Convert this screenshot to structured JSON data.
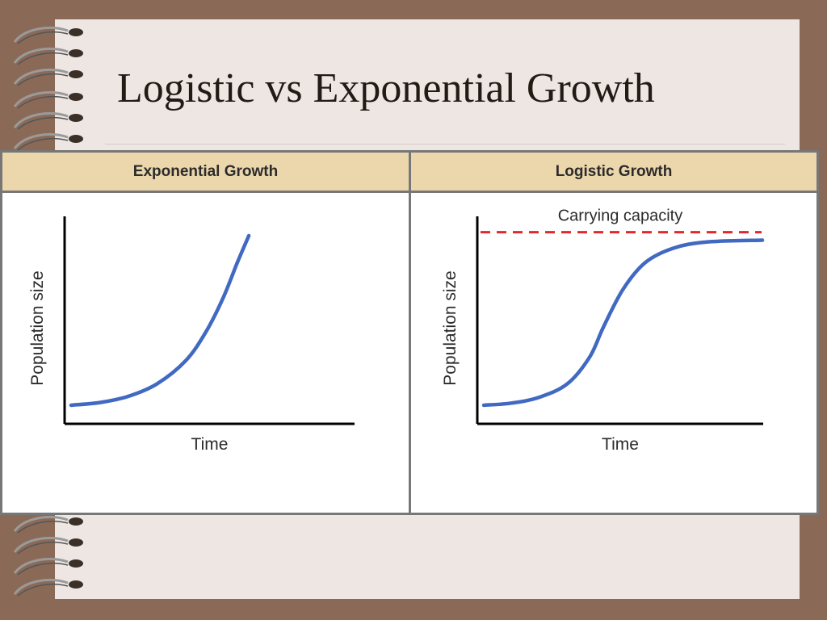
{
  "slide": {
    "title": "Logistic vs Exponential Growth"
  },
  "colors": {
    "background": "#8a6a57",
    "paper": "#ede6e3",
    "header_fill": "#ecd7ad",
    "curve": "#4169c2",
    "capacity_line": "#e0282e"
  },
  "chart_data": [
    {
      "type": "line",
      "title": "Exponential Growth",
      "xlabel": "Time",
      "ylabel": "Population size",
      "grid": false,
      "xlim": [
        0,
        10
      ],
      "ylim": [
        0,
        10
      ],
      "series": [
        {
          "x": [
            0,
            1,
            2,
            3,
            4,
            4.7,
            5.3,
            5.8,
            6.2
          ],
          "values": [
            0.5,
            0.65,
            1.0,
            1.7,
            3.0,
            4.6,
            6.5,
            8.5,
            10.0
          ]
        }
      ]
    },
    {
      "type": "line",
      "title": "Logistic Growth",
      "xlabel": "Time",
      "ylabel": "Population size",
      "grid": false,
      "xlim": [
        0,
        10
      ],
      "ylim": [
        0,
        10
      ],
      "series": [
        {
          "x": [
            0,
            1,
            2,
            3,
            3.8,
            4.3,
            5.0,
            5.8,
            6.8,
            8.0,
            10.0
          ],
          "values": [
            0.5,
            0.62,
            0.95,
            1.7,
            3.2,
            4.9,
            7.0,
            8.5,
            9.3,
            9.65,
            9.75
          ]
        }
      ],
      "reference_line": {
        "label": "Carrying capacity",
        "y": 10.2
      }
    }
  ]
}
